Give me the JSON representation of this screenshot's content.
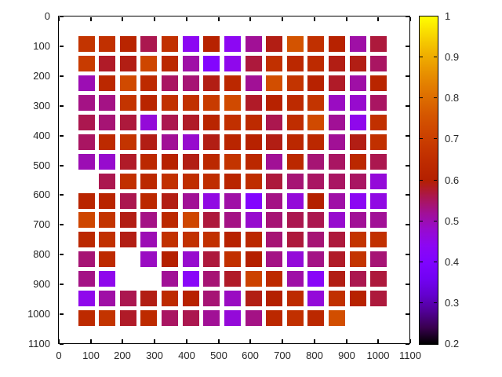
{
  "chart_data": {
    "type": "heatmap",
    "title": "",
    "xlabel": "",
    "ylabel": "",
    "xlim": [
      0,
      1100
    ],
    "ylim": [
      0,
      1100
    ],
    "y_axis_inverted": true,
    "grid": "off",
    "x_ticks": [
      0,
      100,
      200,
      300,
      400,
      500,
      600,
      700,
      800,
      900,
      1000,
      1100
    ],
    "y_ticks": [
      0,
      100,
      200,
      300,
      400,
      500,
      600,
      700,
      800,
      900,
      1000,
      1100
    ],
    "x_positions": [
      86,
      151,
      217,
      282,
      348,
      413,
      478,
      544,
      609,
      675,
      740,
      805,
      871,
      936,
      1001
    ],
    "y_positions": [
      92,
      158,
      224,
      290,
      356,
      421,
      487,
      553,
      619,
      684,
      750,
      816,
      882,
      947,
      1013
    ],
    "values": [
      [
        0.67,
        0.66,
        0.62,
        0.56,
        0.66,
        0.44,
        0.61,
        0.44,
        0.52,
        0.59,
        0.75,
        0.66,
        0.61,
        0.51,
        0.57
      ],
      [
        0.69,
        0.58,
        0.59,
        0.72,
        0.63,
        0.51,
        0.41,
        0.45,
        0.57,
        0.66,
        0.63,
        0.64,
        0.59,
        0.59,
        0.55
      ],
      [
        0.5,
        0.63,
        0.73,
        0.64,
        0.55,
        0.54,
        0.59,
        0.63,
        0.52,
        0.74,
        0.67,
        0.61,
        0.58,
        0.51,
        0.62
      ],
      [
        0.53,
        0.53,
        0.67,
        0.62,
        0.66,
        0.66,
        0.69,
        0.73,
        0.58,
        0.61,
        0.64,
        0.67,
        0.49,
        0.48,
        0.55
      ],
      [
        0.56,
        0.54,
        0.57,
        0.47,
        0.56,
        0.58,
        0.62,
        0.66,
        0.64,
        0.56,
        0.65,
        0.73,
        0.52,
        0.45,
        0.66
      ],
      [
        0.55,
        0.64,
        0.67,
        0.59,
        0.52,
        0.48,
        0.59,
        0.62,
        0.61,
        0.59,
        0.63,
        0.63,
        0.52,
        0.59,
        0.66
      ],
      [
        0.5,
        0.48,
        0.58,
        0.63,
        0.61,
        0.59,
        0.63,
        0.67,
        0.63,
        0.52,
        0.63,
        0.54,
        0.55,
        0.63,
        0.56
      ],
      [
        null,
        0.56,
        0.66,
        0.63,
        0.66,
        0.65,
        0.65,
        0.62,
        0.65,
        0.57,
        0.54,
        0.55,
        0.55,
        0.55,
        0.47
      ],
      [
        0.62,
        0.62,
        0.56,
        0.63,
        0.59,
        0.52,
        0.46,
        0.51,
        0.41,
        0.53,
        0.47,
        0.6,
        0.51,
        0.44,
        0.46
      ],
      [
        0.72,
        0.67,
        0.59,
        0.53,
        0.63,
        0.72,
        0.57,
        0.53,
        0.48,
        0.54,
        0.56,
        0.56,
        0.48,
        0.52,
        0.52
      ],
      [
        0.63,
        0.66,
        0.59,
        0.5,
        0.66,
        0.66,
        0.66,
        0.61,
        0.63,
        0.54,
        0.57,
        0.54,
        0.57,
        0.67,
        0.66
      ],
      [
        0.54,
        0.64,
        null,
        0.49,
        0.6,
        0.48,
        0.57,
        0.66,
        0.6,
        0.53,
        0.47,
        0.53,
        0.58,
        0.67,
        0.54
      ],
      [
        0.53,
        0.45,
        null,
        null,
        0.52,
        0.43,
        0.54,
        0.58,
        0.71,
        0.64,
        0.51,
        0.43,
        0.59,
        0.56,
        0.57
      ],
      [
        0.45,
        0.51,
        0.56,
        0.59,
        0.64,
        0.61,
        0.54,
        0.49,
        0.59,
        0.6,
        0.64,
        0.47,
        0.66,
        0.61,
        0.57
      ],
      [
        0.64,
        0.67,
        0.58,
        0.64,
        0.55,
        0.56,
        0.52,
        0.47,
        0.53,
        0.63,
        0.66,
        0.63,
        0.74,
        null,
        null
      ]
    ],
    "colorbar": {
      "min": 0.2,
      "max": 1,
      "tick_labels": [
        "1",
        "0.9",
        "0.8",
        "0.7",
        "0.6",
        "0.5",
        "0.4",
        "0.3",
        "0.2"
      ],
      "tick_values": [
        1,
        0.9,
        0.8,
        0.7,
        0.6,
        0.5,
        0.4,
        0.3,
        0.2
      ],
      "palette": "gnuplot rgbformulae 7,5,15 (black-purple-violet-red-orange-yellow)",
      "palette_anchors": {
        "0.2": "#000000",
        "0.4": "#8004ff",
        "0.6": "#b42000",
        "0.8": "#e48200",
        "1.0": "#ffff00"
      }
    },
    "text_color": "#262626",
    "border_color": "#000000"
  }
}
